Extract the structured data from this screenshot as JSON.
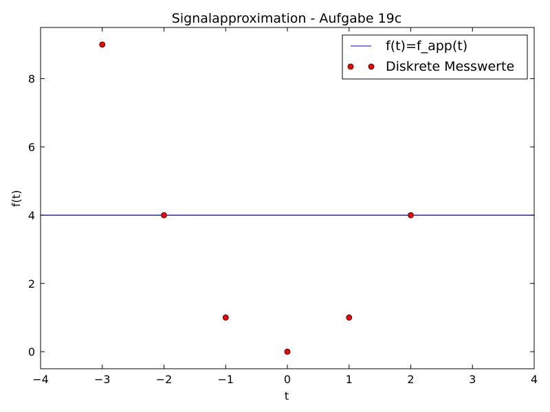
{
  "chart_data": {
    "type": "scatter",
    "title": "Signalapproximation - Aufgabe 19c",
    "xlabel": "t",
    "ylabel": "f(t)",
    "xlim": [
      -4,
      4
    ],
    "ylim": [
      -0.5,
      9.5
    ],
    "xticks": [
      -4,
      -3,
      -2,
      -1,
      0,
      1,
      2,
      3,
      4
    ],
    "xtick_labels": [
      "−4",
      "−3",
      "−2",
      "−1",
      "0",
      "1",
      "2",
      "3",
      "4"
    ],
    "yticks": [
      0,
      2,
      4,
      6,
      8
    ],
    "ytick_labels": [
      "0",
      "2",
      "4",
      "6",
      "8"
    ],
    "grid": false,
    "legend_position": "top-right",
    "series": [
      {
        "name": "f(t)=f_app(t)",
        "kind": "line",
        "color": "#0000ff",
        "x": [
          -4,
          4
        ],
        "y": [
          4,
          4
        ]
      },
      {
        "name": "Diskrete Messwerte",
        "kind": "scatter",
        "color": "#ff0000",
        "x": [
          -3,
          -2,
          -1,
          0,
          1,
          2
        ],
        "y": [
          9,
          4,
          1,
          0,
          1,
          4
        ]
      }
    ]
  }
}
